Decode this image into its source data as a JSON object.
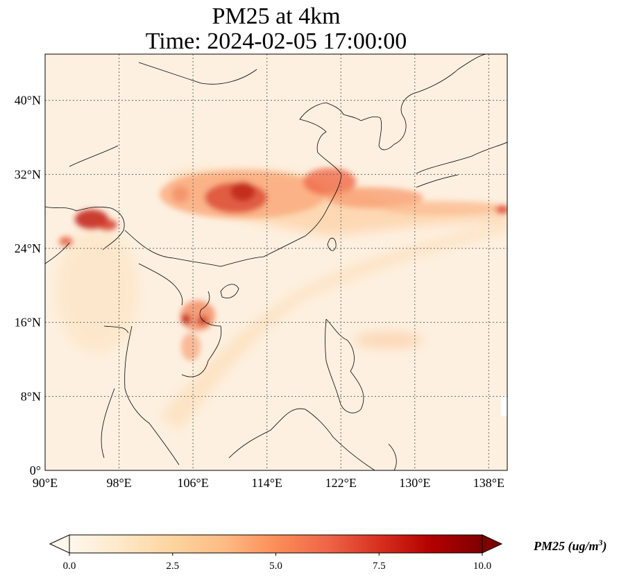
{
  "title": {
    "line1": "PM25 at 4km",
    "line2": "Time: 2024-02-05 17:00:00"
  },
  "map": {
    "variable": "PM25",
    "lon_range": [
      90,
      140
    ],
    "lat_range": [
      0,
      45
    ],
    "lon_ticks": [
      {
        "value": 90,
        "label": "90°E"
      },
      {
        "value": 98,
        "label": "98°E"
      },
      {
        "value": 106,
        "label": "106°E"
      },
      {
        "value": 114,
        "label": "114°E"
      },
      {
        "value": 122,
        "label": "122°E"
      },
      {
        "value": 130,
        "label": "130°E"
      },
      {
        "value": 138,
        "label": "138°E"
      }
    ],
    "lat_ticks": [
      {
        "value": 0,
        "label": "0°"
      },
      {
        "value": 8,
        "label": "8°N"
      },
      {
        "value": 16,
        "label": "16°N"
      },
      {
        "value": 24,
        "label": "24°N"
      },
      {
        "value": 32,
        "label": "32°N"
      },
      {
        "value": 40,
        "label": "40°N"
      }
    ],
    "gridlines": true,
    "colormap": "OrRd"
  },
  "colorbar": {
    "label": "PM25 (ug/m",
    "label_sup": "3",
    "label_close": ")",
    "range": [
      0,
      10
    ],
    "extend": "both",
    "ticks": [
      {
        "value": 0,
        "label": "0.0"
      },
      {
        "value": 2.5,
        "label": "2.5"
      },
      {
        "value": 5,
        "label": "5.0"
      },
      {
        "value": 7.5,
        "label": "7.5"
      },
      {
        "value": 10,
        "label": "10.0"
      }
    ],
    "colors": [
      "#fff7ec",
      "#fee8c8",
      "#fdd49e",
      "#fdbb84",
      "#fc8d59",
      "#ef6548",
      "#d7301f",
      "#b30000",
      "#7f0000"
    ]
  }
}
